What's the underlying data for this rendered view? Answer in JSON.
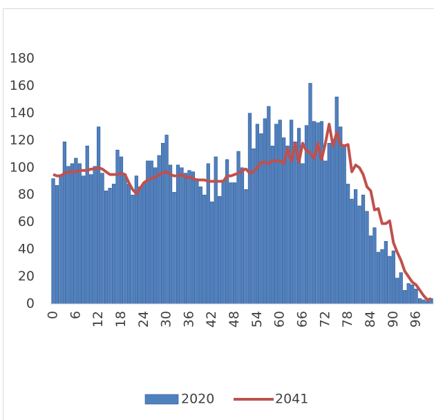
{
  "chart_data": {
    "type": "bar-line",
    "categories": [
      "0",
      null,
      null,
      null,
      null,
      null,
      "6",
      null,
      null,
      null,
      null,
      null,
      "12",
      null,
      null,
      null,
      null,
      null,
      "18",
      null,
      null,
      null,
      null,
      null,
      "24",
      null,
      null,
      null,
      null,
      null,
      "30",
      null,
      null,
      null,
      null,
      null,
      "36",
      null,
      null,
      null,
      null,
      null,
      "42",
      null,
      null,
      null,
      null,
      null,
      "48",
      null,
      null,
      null,
      null,
      null,
      "54",
      null,
      null,
      null,
      null,
      null,
      "60",
      null,
      null,
      null,
      null,
      null,
      "66",
      null,
      null,
      null,
      null,
      null,
      "72",
      null,
      null,
      null,
      null,
      null,
      "78",
      null,
      null,
      null,
      null,
      null,
      "84",
      null,
      null,
      null,
      null,
      null,
      "90",
      null,
      null,
      null,
      null,
      null,
      "96",
      null,
      null,
      null,
      null
    ],
    "series": [
      {
        "name": "2020",
        "type": "bar",
        "color": "#4f81bd",
        "values": [
          92,
          87,
          95,
          119,
          101,
          103,
          107,
          103,
          94,
          116,
          95,
          101,
          130,
          96,
          83,
          85,
          88,
          113,
          108,
          95,
          88,
          80,
          94,
          86,
          89,
          105,
          105,
          100,
          109,
          118,
          124,
          102,
          82,
          102,
          100,
          96,
          98,
          97,
          92,
          86,
          80,
          103,
          75,
          108,
          79,
          91,
          106,
          89,
          89,
          112,
          100,
          84,
          140,
          114,
          132,
          125,
          136,
          145,
          116,
          132,
          135,
          122,
          116,
          135,
          119,
          129,
          103,
          131,
          162,
          134,
          133,
          134,
          105,
          118,
          120,
          152,
          130,
          117,
          88,
          77,
          84,
          72,
          80,
          68,
          50,
          56,
          38,
          40,
          46,
          35,
          39,
          19,
          23,
          10,
          15,
          14,
          11,
          4,
          3,
          2,
          4
        ]
      },
      {
        "name": "2041",
        "type": "line",
        "color": "#c0504d",
        "values": [
          95,
          94,
          94,
          96,
          97,
          97,
          97,
          98,
          98,
          98,
          99,
          99,
          100,
          99,
          97,
          95,
          95,
          95,
          96,
          95,
          89,
          84,
          81,
          85,
          89,
          91,
          92,
          93,
          95,
          96,
          97,
          95,
          94,
          94,
          95,
          93,
          93,
          92,
          91,
          91,
          91,
          90,
          90,
          90,
          90,
          90,
          94,
          94,
          95,
          96,
          98,
          99,
          96,
          97,
          100,
          104,
          104,
          103,
          105,
          105,
          105,
          103,
          114,
          105,
          118,
          104,
          118,
          112,
          111,
          107,
          118,
          106,
          118,
          132,
          116,
          126,
          117,
          116,
          117,
          97,
          102,
          100,
          95,
          86,
          83,
          69,
          70,
          59,
          59,
          61,
          45,
          38,
          32,
          24,
          20,
          16,
          14,
          10,
          6,
          3,
          4
        ]
      }
    ],
    "ylim": [
      0,
      180
    ],
    "yticks": [
      0,
      20,
      40,
      60,
      80,
      100,
      120,
      140,
      160,
      180
    ],
    "legend": "bottom"
  }
}
